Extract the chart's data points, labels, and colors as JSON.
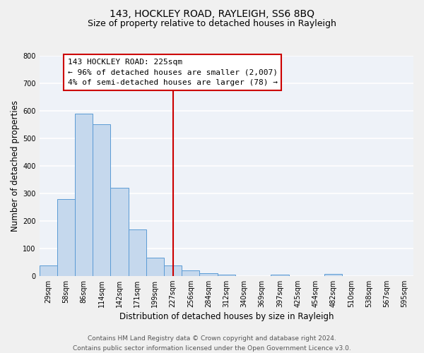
{
  "title": "143, HOCKLEY ROAD, RAYLEIGH, SS6 8BQ",
  "subtitle": "Size of property relative to detached houses in Rayleigh",
  "xlabel": "Distribution of detached houses by size in Rayleigh",
  "ylabel": "Number of detached properties",
  "bin_labels": [
    "29sqm",
    "58sqm",
    "86sqm",
    "114sqm",
    "142sqm",
    "171sqm",
    "199sqm",
    "227sqm",
    "256sqm",
    "284sqm",
    "312sqm",
    "340sqm",
    "369sqm",
    "397sqm",
    "425sqm",
    "454sqm",
    "482sqm",
    "510sqm",
    "538sqm",
    "567sqm",
    "595sqm"
  ],
  "bar_values": [
    38,
    278,
    590,
    550,
    320,
    168,
    65,
    38,
    20,
    10,
    5,
    0,
    0,
    5,
    0,
    0,
    8,
    0,
    0,
    0,
    0
  ],
  "bar_color": "#c5d8ed",
  "bar_edgecolor": "#5b9bd5",
  "vline_x": 7.0,
  "vline_color": "#cc0000",
  "ylim": [
    0,
    800
  ],
  "yticks": [
    0,
    100,
    200,
    300,
    400,
    500,
    600,
    700,
    800
  ],
  "annotation_title": "143 HOCKLEY ROAD: 225sqm",
  "annotation_line1": "← 96% of detached houses are smaller (2,007)",
  "annotation_line2": "4% of semi-detached houses are larger (78) →",
  "annotation_box_color": "#ffffff",
  "annotation_box_edgecolor": "#cc0000",
  "footer_line1": "Contains HM Land Registry data © Crown copyright and database right 2024.",
  "footer_line2": "Contains public sector information licensed under the Open Government Licence v3.0.",
  "background_color": "#eef2f8",
  "grid_color": "#ffffff",
  "title_fontsize": 10,
  "subtitle_fontsize": 9,
  "axis_label_fontsize": 8.5,
  "tick_fontsize": 7,
  "annotation_fontsize": 8,
  "footer_fontsize": 6.5,
  "fig_width": 6.0,
  "fig_height": 5.0,
  "dpi": 100
}
